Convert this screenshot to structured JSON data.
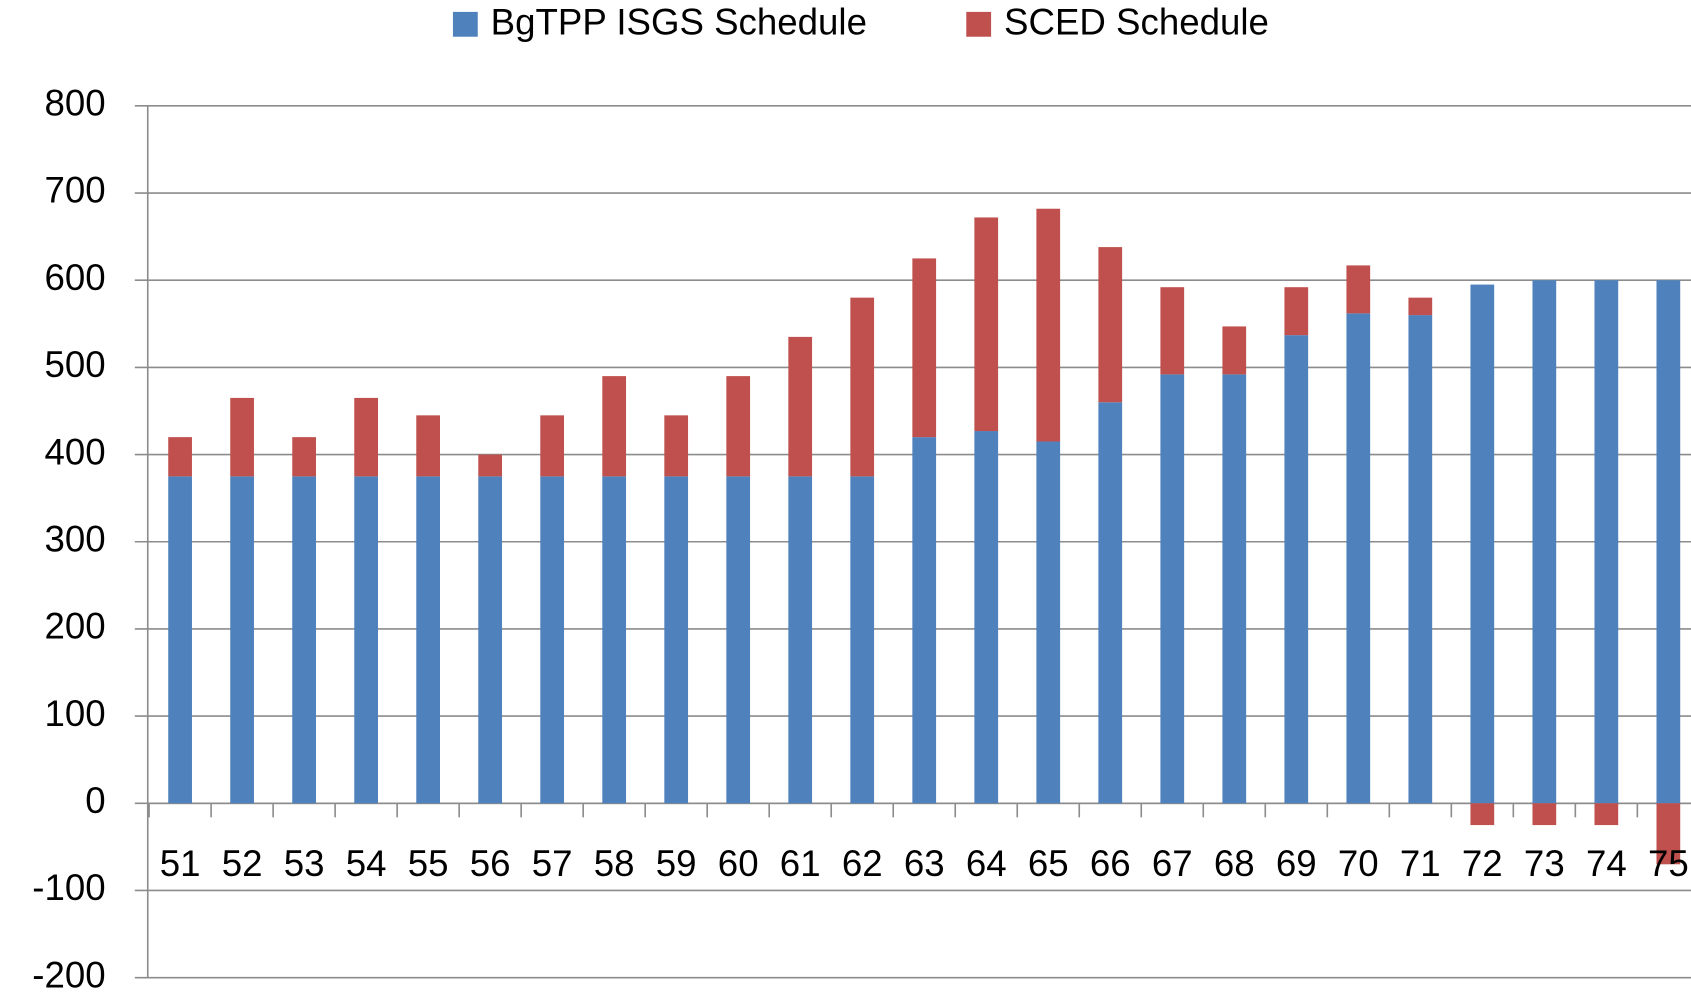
{
  "chart_data": {
    "type": "stacked_bar",
    "categories": [
      "51",
      "52",
      "53",
      "54",
      "55",
      "56",
      "57",
      "58",
      "59",
      "60",
      "61",
      "62",
      "63",
      "64",
      "65",
      "66",
      "67",
      "68",
      "69",
      "70",
      "71",
      "72",
      "73",
      "74",
      "75"
    ],
    "series": [
      {
        "name": "BgTPP ISGS Schedule",
        "color": "#4f81bd",
        "values": [
          375,
          375,
          375,
          375,
          375,
          375,
          375,
          375,
          375,
          375,
          375,
          375,
          420,
          427,
          415,
          460,
          492,
          492,
          537,
          562,
          560,
          595,
          600,
          600,
          600
        ]
      },
      {
        "name": "SCED Schedule",
        "color": "#c0504d",
        "values": [
          45,
          90,
          45,
          90,
          70,
          25,
          70,
          115,
          70,
          115,
          160,
          205,
          205,
          245,
          267,
          178,
          100,
          55,
          55,
          55,
          20,
          -25,
          -25,
          -25,
          -70
        ]
      }
    ],
    "ylim": [
      -200,
      800
    ],
    "yticks": [
      -200,
      -100,
      0,
      100,
      200,
      300,
      400,
      500,
      600,
      700,
      800
    ],
    "grid": true,
    "legend": "top"
  }
}
